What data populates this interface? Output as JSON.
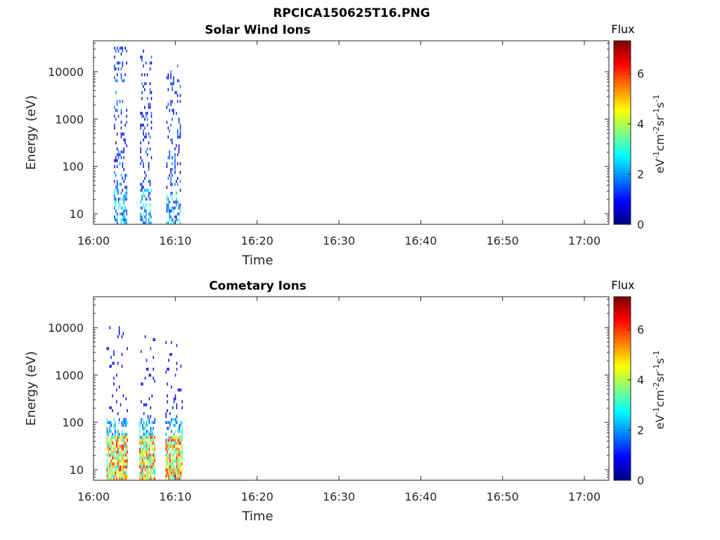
{
  "figure": {
    "title": "RPCICA150625T16.PNG"
  },
  "chart_data": [
    {
      "type": "heatmap",
      "title": "Solar Wind Ions",
      "xlabel": "Time",
      "ylabel": "Energy (eV)",
      "xticks": [
        "16:00",
        "16:10",
        "16:20",
        "16:30",
        "16:40",
        "16:50",
        "17:00"
      ],
      "xlim": [
        "16:00",
        "17:03"
      ],
      "yscale": "log",
      "yticks": [
        10,
        100,
        1000,
        10000
      ],
      "ytick_labels": [
        "10",
        "100",
        "1000",
        "10000"
      ],
      "ylim": [
        6,
        45000
      ],
      "colorbar": {
        "title": "Flux",
        "label_base": "eV",
        "label_parts": [
          "-1",
          "cm",
          "-2",
          "sr",
          "-1",
          "s",
          "-1"
        ],
        "ticks": [
          0,
          2,
          4,
          6
        ],
        "tick_labels": [
          "0",
          "2",
          "4",
          "6"
        ],
        "range": [
          0,
          7.3
        ],
        "colormap": "jet"
      },
      "bursts": [
        {
          "t_start_min": 2.5,
          "t_end_min": 4.2,
          "e_min": 6,
          "e_max": 32000
        },
        {
          "t_start_min": 5.7,
          "t_end_min": 7.2,
          "e_min": 6,
          "e_max": 28000
        },
        {
          "t_start_min": 8.9,
          "t_end_min": 10.7,
          "e_min": 6,
          "e_max": 15000
        }
      ]
    },
    {
      "type": "heatmap",
      "title": "Cometary Ions",
      "xlabel": "Time",
      "ylabel": "Energy (eV)",
      "xticks": [
        "16:00",
        "16:10",
        "16:20",
        "16:30",
        "16:40",
        "16:50",
        "17:00"
      ],
      "xlim": [
        "16:00",
        "17:03"
      ],
      "yscale": "log",
      "yticks": [
        10,
        100,
        1000,
        10000
      ],
      "ytick_labels": [
        "10",
        "100",
        "1000",
        "10000"
      ],
      "ylim": [
        6,
        45000
      ],
      "colorbar": {
        "title": "Flux",
        "label_base": "eV",
        "label_parts": [
          "-1",
          "cm",
          "-2",
          "sr",
          "-1",
          "s",
          "-1"
        ],
        "ticks": [
          0,
          2,
          4,
          6
        ],
        "tick_labels": [
          "0",
          "2",
          "4",
          "6"
        ],
        "range": [
          0,
          7.3
        ],
        "colormap": "jet"
      },
      "bursts": [
        {
          "t_start_min": 1.6,
          "t_end_min": 4.3,
          "e_min": 6,
          "e_max": 10000
        },
        {
          "t_start_min": 5.6,
          "t_end_min": 7.6,
          "e_min": 6,
          "e_max": 9000
        },
        {
          "t_start_min": 8.8,
          "t_end_min": 10.9,
          "e_min": 6,
          "e_max": 5500
        }
      ]
    }
  ]
}
